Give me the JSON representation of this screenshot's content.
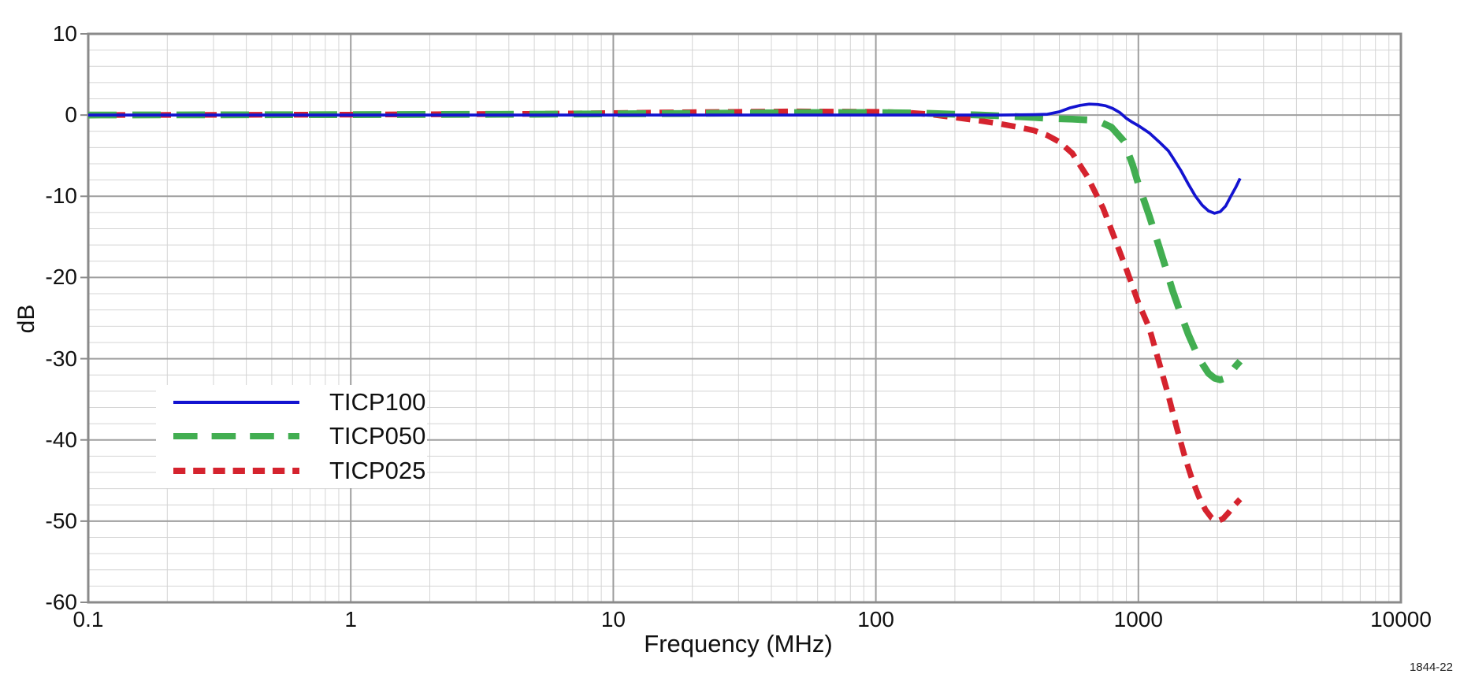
{
  "figure_number": "1844-22",
  "colors": {
    "background": "#ffffff",
    "grid_minor": "#d4d4d4",
    "grid_major": "#9f9f9f",
    "frame": "#8a8a8a",
    "text": "#111111",
    "legend_background": "#ffffff"
  },
  "chart_data": {
    "type": "line",
    "title": "",
    "xlabel": "Frequency (MHz)",
    "ylabel": "dB",
    "x_scale": "log",
    "xlim": [
      0.1,
      10000
    ],
    "ylim": [
      -60,
      10
    ],
    "y_major_step": 10,
    "y_minor_step": 2,
    "grid": true,
    "legend_position": "lower-left",
    "x_ticks": [
      0.1,
      1,
      10,
      100,
      1000,
      10000
    ],
    "x_tick_labels": [
      "0.1",
      "1",
      "10",
      "100",
      "1000",
      "10000"
    ],
    "y_ticks": [
      10,
      0,
      -10,
      -20,
      -30,
      -40,
      -50,
      -60
    ],
    "y_tick_labels": [
      "10",
      "0",
      "-10",
      "-20",
      "-30",
      "-40",
      "-50",
      "-60"
    ],
    "series": [
      {
        "name": "TICP025",
        "color": "#d5232e",
        "line_style": "short-dash",
        "stroke_width": 7.3,
        "dash": [
          18,
          11
        ],
        "points": [
          [
            0.1,
            0
          ],
          [
            1,
            0.05
          ],
          [
            5,
            0.15
          ],
          [
            10,
            0.25
          ],
          [
            20,
            0.35
          ],
          [
            50,
            0.45
          ],
          [
            100,
            0.4
          ],
          [
            130,
            0.3
          ],
          [
            160,
            0.1
          ],
          [
            200,
            -0.3
          ],
          [
            250,
            -0.7
          ],
          [
            300,
            -1.1
          ],
          [
            350,
            -1.5
          ],
          [
            400,
            -1.9
          ],
          [
            450,
            -2.5
          ],
          [
            500,
            -3.3
          ],
          [
            560,
            -4.7
          ],
          [
            640,
            -7.6
          ],
          [
            735,
            -11.5
          ],
          [
            815,
            -15.3
          ],
          [
            905,
            -19.2
          ],
          [
            1000,
            -23.1
          ],
          [
            1100,
            -26.2
          ],
          [
            1200,
            -30.5
          ],
          [
            1300,
            -34.5
          ],
          [
            1400,
            -38.5
          ],
          [
            1500,
            -42
          ],
          [
            1600,
            -44.8
          ],
          [
            1700,
            -47
          ],
          [
            1800,
            -48.6
          ],
          [
            1900,
            -49.6
          ],
          [
            2000,
            -50
          ],
          [
            2100,
            -49.7
          ],
          [
            2200,
            -49
          ],
          [
            2300,
            -48.2
          ],
          [
            2440,
            -47.3
          ]
        ]
      },
      {
        "name": "TICP050",
        "color": "#42ae51",
        "line_style": "long-dash",
        "stroke_width": 8.7,
        "dash": [
          36,
          20
        ],
        "points": [
          [
            0.1,
            0
          ],
          [
            1,
            0.05
          ],
          [
            5,
            0.1
          ],
          [
            10,
            0.15
          ],
          [
            20,
            0.2
          ],
          [
            50,
            0.3
          ],
          [
            100,
            0.3
          ],
          [
            150,
            0.25
          ],
          [
            200,
            0.1
          ],
          [
            250,
            0
          ],
          [
            300,
            -0.1
          ],
          [
            350,
            -0.2
          ],
          [
            400,
            -0.3
          ],
          [
            450,
            -0.4
          ],
          [
            500,
            -0.45
          ],
          [
            560,
            -0.5
          ],
          [
            640,
            -0.6
          ],
          [
            720,
            -0.9
          ],
          [
            790,
            -1.5
          ],
          [
            880,
            -3.2
          ],
          [
            950,
            -6.1
          ],
          [
            1000,
            -8.5
          ],
          [
            1100,
            -12.4
          ],
          [
            1170,
            -15.1
          ],
          [
            1260,
            -18.4
          ],
          [
            1350,
            -21.6
          ],
          [
            1450,
            -24.5
          ],
          [
            1550,
            -27
          ],
          [
            1650,
            -29
          ],
          [
            1750,
            -30.6
          ],
          [
            1850,
            -31.8
          ],
          [
            1950,
            -32.4
          ],
          [
            2050,
            -32.6
          ],
          [
            2150,
            -32.4
          ],
          [
            2250,
            -31.7
          ],
          [
            2350,
            -30.9
          ],
          [
            2440,
            -30.3
          ]
        ]
      },
      {
        "name": "TICP100",
        "color": "#1313d0",
        "line_style": "solid",
        "stroke_width": 3.7,
        "dash": null,
        "points": [
          [
            0.1,
            0
          ],
          [
            1,
            0
          ],
          [
            10,
            0
          ],
          [
            50,
            0
          ],
          [
            100,
            0
          ],
          [
            200,
            0
          ],
          [
            300,
            0
          ],
          [
            400,
            0.05
          ],
          [
            450,
            0.1
          ],
          [
            500,
            0.4
          ],
          [
            550,
            0.9
          ],
          [
            600,
            1.2
          ],
          [
            650,
            1.35
          ],
          [
            700,
            1.3
          ],
          [
            750,
            1.15
          ],
          [
            800,
            0.8
          ],
          [
            850,
            0.3
          ],
          [
            900,
            -0.4
          ],
          [
            950,
            -0.9
          ],
          [
            1000,
            -1.3
          ],
          [
            1100,
            -2.2
          ],
          [
            1200,
            -3.3
          ],
          [
            1300,
            -4.4
          ],
          [
            1350,
            -5.2
          ],
          [
            1450,
            -6.8
          ],
          [
            1550,
            -8.5
          ],
          [
            1650,
            -10
          ],
          [
            1750,
            -11.1
          ],
          [
            1850,
            -11.8
          ],
          [
            1950,
            -12.1
          ],
          [
            2050,
            -11.9
          ],
          [
            2150,
            -11.2
          ],
          [
            2250,
            -10
          ],
          [
            2350,
            -8.9
          ],
          [
            2440,
            -7.8
          ]
        ]
      }
    ],
    "legend_order": [
      "TICP100",
      "TICP050",
      "TICP025"
    ]
  }
}
